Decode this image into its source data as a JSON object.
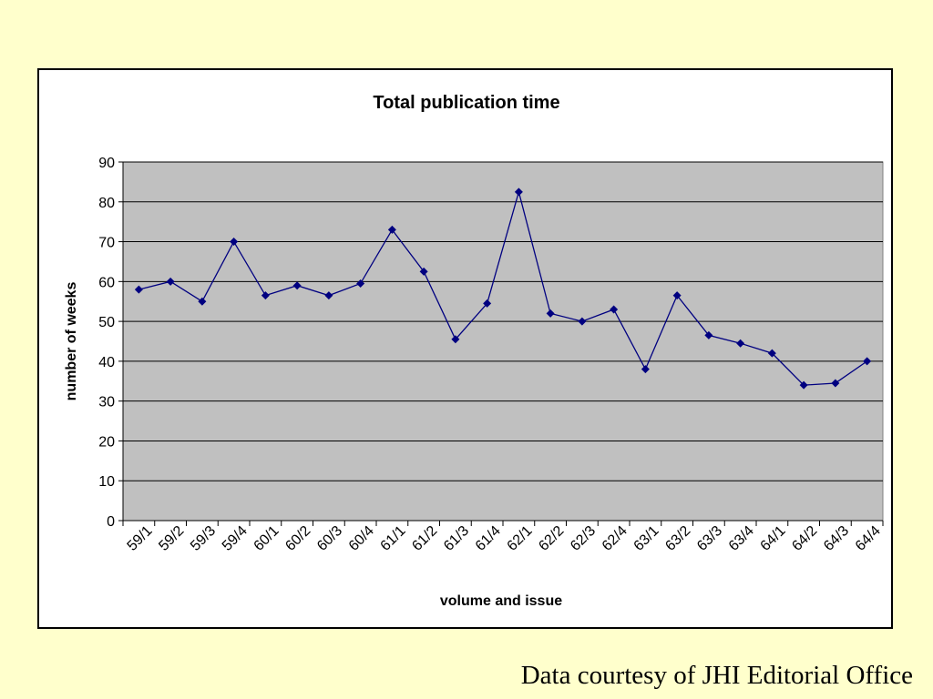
{
  "chart_data": {
    "type": "line",
    "title": "Total publication time",
    "xlabel": "volume and issue",
    "ylabel": "number of weeks",
    "ylim": [
      0,
      90
    ],
    "yticks": [
      0,
      10,
      20,
      30,
      40,
      50,
      60,
      70,
      80,
      90
    ],
    "grid": true,
    "legend": "none",
    "categories": [
      "59/1",
      "59/2",
      "59/3",
      "59/4",
      "60/1",
      "60/2",
      "60/3",
      "60/4",
      "61/1",
      "61/2",
      "61/3",
      "61/4",
      "62/1",
      "62/2",
      "62/3",
      "62/4",
      "63/1",
      "63/2",
      "63/3",
      "63/4",
      "64/1",
      "64/2",
      "64/3",
      "64/4"
    ],
    "series": [
      {
        "values": [
          58,
          60,
          55,
          70,
          56.5,
          59,
          56.5,
          59.5,
          73,
          62.5,
          45.5,
          54.5,
          82.5,
          52,
          50,
          53,
          38,
          56.5,
          46.5,
          44.5,
          42,
          34,
          34.5,
          40
        ],
        "color": "#000080"
      }
    ],
    "plot_background": "#C0C0C0"
  },
  "footer": {
    "credit": "Data courtesy of JHI Editorial Office"
  }
}
